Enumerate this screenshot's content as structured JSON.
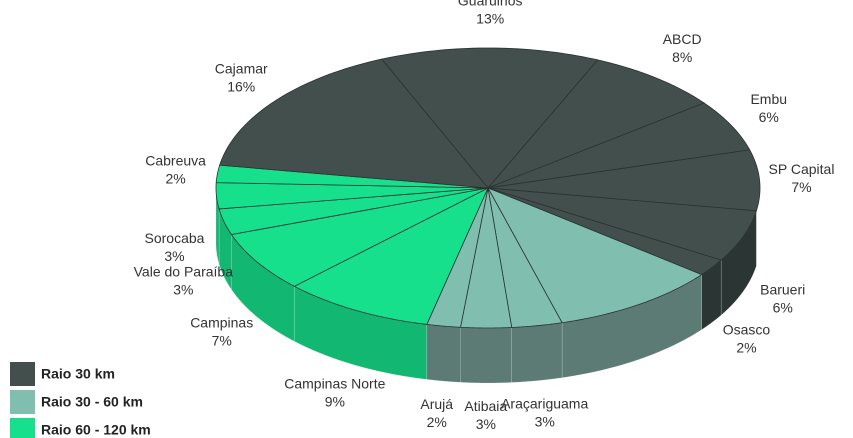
{
  "chart_data": {
    "type": "pie",
    "categories": [
      "Guarulhos",
      "ABCD",
      "Embu",
      "SP Capital",
      "Barueri",
      "Osasco",
      null,
      "Araçariguama",
      "Atibaia",
      "Arujá",
      "Campinas Norte",
      "Campinas",
      "Vale do Paraíba",
      "Sorocaba",
      "Cabreuva",
      "Cajamar"
    ],
    "values": [
      13,
      8,
      6,
      7,
      6,
      2,
      10,
      3,
      3,
      2,
      9,
      7,
      3,
      3,
      2,
      16
    ],
    "value_labels": [
      "13%",
      "8%",
      "6%",
      "7%",
      "6%",
      "2%",
      null,
      "3%",
      "3%",
      "2%",
      "9%",
      "7%",
      "3%",
      "3%",
      "2%",
      "16%"
    ],
    "groups": [
      0,
      0,
      0,
      0,
      0,
      0,
      1,
      1,
      1,
      1,
      2,
      2,
      2,
      2,
      2,
      0
    ],
    "legend": [
      {
        "name": "Raio 30 km",
        "color": "#434f4d"
      },
      {
        "name": "Raio 30 - 60 km",
        "color": "#80bfb0"
      },
      {
        "name": "Raio 60 - 120 km",
        "color": "#17e08c"
      }
    ]
  }
}
